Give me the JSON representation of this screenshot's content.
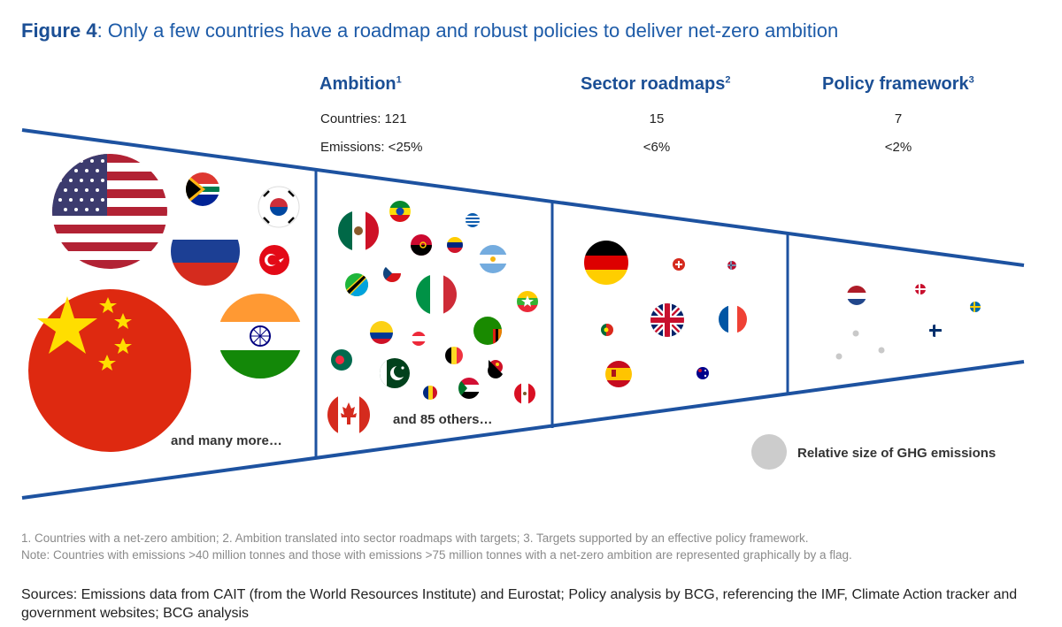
{
  "title": {
    "prefix": "Figure 4",
    "text": ": Only a few countries have a roadmap and robust policies to deliver net-zero ambition"
  },
  "columns": [
    {
      "label": "Ambition",
      "sup": "1"
    },
    {
      "label": "Sector roadmaps",
      "sup": "2"
    },
    {
      "label": "Policy framework",
      "sup": "3"
    }
  ],
  "stats": {
    "countries": [
      "Countries: 121",
      "15",
      "7"
    ],
    "emissions": [
      "Emissions: <25%",
      "<6%",
      "<2%"
    ]
  },
  "annotations": {
    "many_more": "and many more…",
    "others": "and 85 others…"
  },
  "legend": {
    "label": "Relative size of GHG emissions"
  },
  "footnotes": [
    "1. Countries with a net-zero ambition; 2. Ambition translated into sector roadmaps with targets; 3. Targets supported by an effective policy framework.",
    "Note: Countries with emissions >40 million tonnes and those with emissions >75 million tonnes with a net-zero ambition are represented graphically by a flag."
  ],
  "sources": "Sources: Emissions data from CAIT (from the World Resources Institute) and Eurostat; Policy analysis by BCG, referencing the IMF, Climate Action tracker and government websites; BCG analysis",
  "colors": {
    "brand_blue": "#1b4f95",
    "funnel_line": "#1d52a0",
    "grey_dot": "#cccccc"
  },
  "flags": [
    "usa-flag",
    "south-africa-flag",
    "south-korea-flag",
    "russia-flag",
    "turkey-flag",
    "china-flag",
    "india-flag",
    "mexico-flag",
    "ethiopia-flag",
    "greece-flag",
    "angola-flag",
    "venezuela-flag",
    "argentina-flag",
    "tanzania-flag",
    "czech-flag",
    "italy-flag",
    "myanmar-flag",
    "colombia-flag",
    "austria-flag",
    "zambia-flag",
    "bangladesh-flag",
    "pakistan-flag",
    "belgium-flag",
    "papua-new-guinea-flag",
    "romania-flag",
    "sudan-flag",
    "peru-flag",
    "canada-flag",
    "germany-flag",
    "switzerland-flag",
    "norway-flag",
    "portugal-flag",
    "uk-flag",
    "france-flag",
    "spain-flag",
    "australia-flag",
    "netherlands-flag",
    "denmark-flag",
    "sweden-flag",
    "finland-flag"
  ]
}
